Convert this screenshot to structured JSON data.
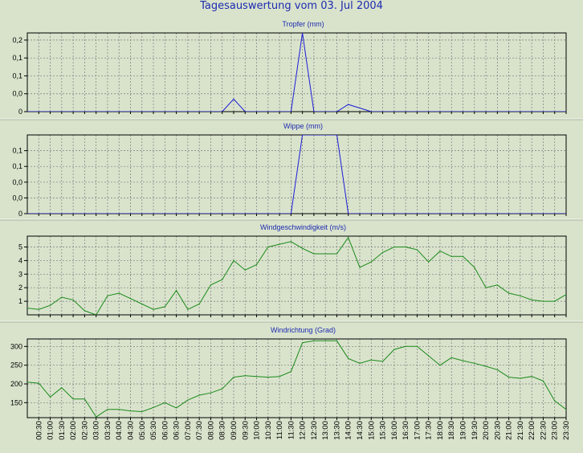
{
  "page": {
    "title": "Tagesauswertung vom 03. Jul 2004"
  },
  "colors": {
    "background": "#d9e3cc",
    "rain": "#1c1cd6",
    "wind": "#1a8a1a",
    "grid": "#777777",
    "title": "#1d2bb0"
  },
  "x_tick_labels": [
    "00:30",
    "01:00",
    "01:30",
    "02:00",
    "02:30",
    "03:00",
    "03:30",
    "04:00",
    "04:30",
    "05:00",
    "05:30",
    "06:00",
    "06:30",
    "07:00",
    "07:30",
    "08:00",
    "08:30",
    "09:00",
    "09:30",
    "10:00",
    "10:30",
    "11:00",
    "11:30",
    "12:00",
    "12:30",
    "13:00",
    "13:30",
    "14:00",
    "14:30",
    "15:00",
    "15:30",
    "16:00",
    "16:30",
    "17:00",
    "17:30",
    "18:00",
    "18:30",
    "19:00",
    "19:30",
    "20:00",
    "20:30",
    "21:00",
    "21:30",
    "22:00",
    "22:30",
    "23:00",
    "23:30"
  ],
  "chart_data": [
    {
      "type": "line",
      "title": "Tropfer (mm)",
      "ylim": [
        0,
        0.22
      ],
      "yticks": [
        0,
        0.05,
        0.1,
        0.15,
        0.2
      ],
      "ytick_labels": [
        "0",
        "0,0",
        "0,1",
        "0,1",
        "0,2"
      ],
      "grid": true,
      "series": [
        {
          "color": "#1c1cd6",
          "x": [
            "00:00",
            "08:30",
            "09:00",
            "09:30",
            "11:30",
            "12:00",
            "12:30",
            "13:30",
            "14:00",
            "14:30",
            "15:00",
            "23:30"
          ],
          "y": [
            0,
            0,
            0.035,
            0,
            0,
            0.22,
            0,
            0,
            0.02,
            0.01,
            0,
            0
          ]
        }
      ]
    },
    {
      "type": "line",
      "title": "Wippe (mm)",
      "ylim": [
        0,
        0.2
      ],
      "yticks": [
        0,
        0.04,
        0.08,
        0.12,
        0.16
      ],
      "ytick_labels": [
        "0",
        "0,0",
        "0,0",
        "0,1",
        "0,1"
      ],
      "grid": true,
      "series": [
        {
          "color": "#1c1cd6",
          "x": [
            "00:00",
            "11:30",
            "12:00",
            "13:30",
            "14:00",
            "23:30"
          ],
          "y": [
            0,
            0,
            0.2,
            0.2,
            0,
            0
          ]
        }
      ]
    },
    {
      "type": "line",
      "title": "Windgeschwindigkeit (m/s)",
      "ylim": [
        0,
        5.8
      ],
      "yticks": [
        1,
        2,
        3,
        4,
        5
      ],
      "ytick_labels": [
        "1",
        "2",
        "3",
        "4",
        "5"
      ],
      "grid": true,
      "series": [
        {
          "color": "#1a8a1a",
          "x": [
            "00:00",
            "00:30",
            "01:00",
            "01:30",
            "02:00",
            "02:30",
            "03:00",
            "03:30",
            "04:00",
            "04:30",
            "05:00",
            "05:30",
            "06:00",
            "06:30",
            "07:00",
            "07:30",
            "08:00",
            "08:30",
            "09:00",
            "09:30",
            "10:00",
            "10:30",
            "11:00",
            "11:30",
            "12:00",
            "12:30",
            "13:00",
            "13:30",
            "14:00",
            "14:30",
            "15:00",
            "15:30",
            "16:00",
            "16:30",
            "17:00",
            "17:30",
            "18:00",
            "18:30",
            "19:00",
            "19:30",
            "20:00",
            "20:30",
            "21:00",
            "21:30",
            "22:00",
            "22:30",
            "23:00",
            "23:30"
          ],
          "y": [
            0.5,
            0.4,
            0.7,
            1.3,
            1.1,
            0.3,
            0.0,
            1.4,
            1.6,
            1.2,
            0.8,
            0.4,
            0.6,
            1.8,
            0.4,
            0.8,
            2.2,
            2.6,
            4.0,
            3.3,
            3.7,
            5.0,
            5.2,
            5.4,
            4.9,
            4.5,
            4.5,
            4.5,
            5.7,
            3.5,
            3.9,
            4.6,
            5.0,
            5.0,
            4.8,
            3.9,
            4.7,
            4.3,
            4.3,
            3.5,
            2.0,
            2.2,
            1.6,
            1.4,
            1.1,
            1.0,
            1.0,
            1.5
          ]
        }
      ]
    },
    {
      "type": "line",
      "title": "Windrichtung (Grad)",
      "ylim": [
        110,
        320
      ],
      "yticks": [
        150,
        200,
        250,
        300
      ],
      "ytick_labels": [
        "150",
        "200",
        "250",
        "300"
      ],
      "grid": true,
      "series": [
        {
          "color": "#1a8a1a",
          "x": [
            "00:00",
            "00:30",
            "01:00",
            "01:30",
            "02:00",
            "02:30",
            "03:00",
            "03:30",
            "04:00",
            "04:30",
            "05:00",
            "05:30",
            "06:00",
            "06:30",
            "07:00",
            "07:30",
            "08:00",
            "08:30",
            "09:00",
            "09:30",
            "10:00",
            "10:30",
            "11:00",
            "11:30",
            "12:00",
            "12:30",
            "13:00",
            "13:30",
            "14:00",
            "14:30",
            "15:00",
            "15:30",
            "16:00",
            "16:30",
            "17:00",
            "17:30",
            "18:00",
            "18:30",
            "19:00",
            "19:30",
            "20:00",
            "20:30",
            "21:00",
            "21:30",
            "22:00",
            "22:30",
            "23:00",
            "23:30"
          ],
          "y": [
            205,
            202,
            165,
            190,
            160,
            160,
            112,
            132,
            132,
            128,
            126,
            137,
            150,
            136,
            157,
            170,
            176,
            187,
            218,
            222,
            220,
            218,
            220,
            233,
            310,
            315,
            315,
            315,
            268,
            255,
            264,
            260,
            292,
            300,
            300,
            275,
            250,
            270,
            262,
            255,
            247,
            238,
            218,
            215,
            220,
            208,
            155,
            132
          ]
        }
      ]
    }
  ]
}
